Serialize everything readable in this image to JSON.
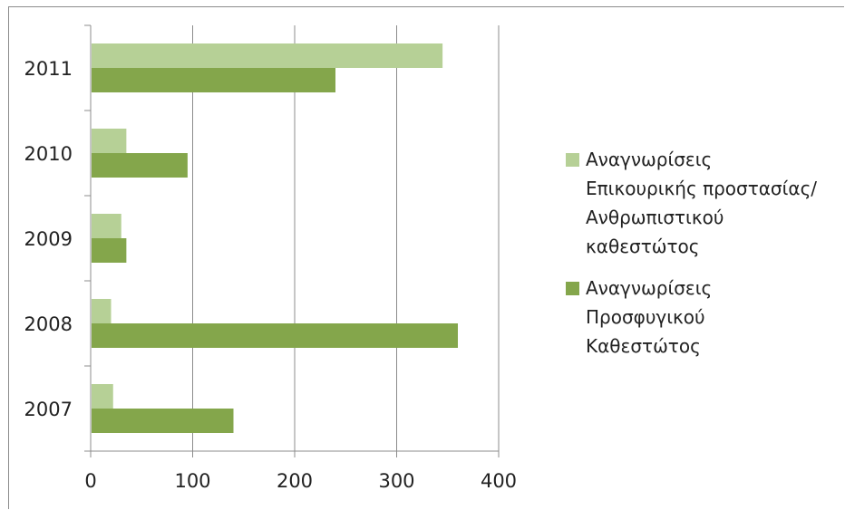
{
  "chart_data": {
    "type": "bar",
    "orientation": "horizontal",
    "categories": [
      "2011",
      "2010",
      "2009",
      "2008",
      "2007"
    ],
    "series": [
      {
        "name": "Αναγνωρίσεις\nΕπικουρικής προστασίας/\nΑνθρωπιστικού\nκαθεστώτος",
        "color": "#b6d096",
        "values": [
          345,
          35,
          30,
          20,
          22
        ]
      },
      {
        "name": " Αναγνωρίσεις\nΠροσφυγικού\nΚαθεστώτος",
        "color": "#84a64b",
        "values": [
          240,
          95,
          35,
          360,
          140
        ]
      }
    ],
    "xlim": [
      0,
      400
    ],
    "x_ticks": [
      "0",
      "100",
      "200",
      "300",
      "400"
    ],
    "grid": true,
    "legend_position": "right"
  }
}
